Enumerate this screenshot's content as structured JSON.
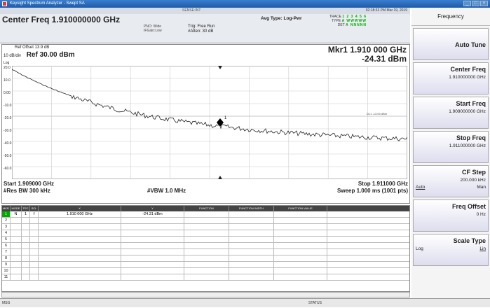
{
  "window": {
    "title": "Keysight Spectrum Analyzer - Swept SA",
    "buttons": [
      "_",
      "□",
      "×"
    ]
  },
  "menubar": {
    "text": "SENSE:INT",
    "status_right": "02:18:33 PM Mar 19, 2019"
  },
  "header": {
    "center_freq": "Center Freq 1.910000000 GHz",
    "pno": "PNO: Wide",
    "ifgain": "IFGain:Low",
    "trig": "Trig: Free Run",
    "atten": "#Atten: 30 dB",
    "avg_type": "Avg Type: Log-Pwr",
    "trace_lbl": "TRACE",
    "trace_vals": "1 2 3 4 5 6",
    "type_lbl": "TYPE",
    "type_vals": "A WWWWW",
    "det_lbl": "DET",
    "det_vals": "A NNNNN"
  },
  "plot": {
    "ref_offset": "Ref Offset 13.9 dB",
    "scale": "10 dB/div",
    "ref": "Ref 30.00 dBm",
    "log": "Log",
    "marker_freq": "Mkr1 1.910 000 GHz",
    "marker_amp": "-24.31 dBm",
    "marker_label": "1",
    "dl_label": "DL1 -13.00 dBm",
    "yticks": [
      "20.0",
      "10.0",
      "0.00",
      "-10.0",
      "-20.0",
      "-30.0",
      "-40.0",
      "-50.0",
      "-60.0"
    ],
    "start": "Start 1.909000 GHz",
    "res_bw": "#Res BW 300 kHz",
    "vbw": "#VBW 1.0 MHz",
    "stop": "Stop 1.911000 GHz",
    "sweep": "Sweep  1.000 ms (1001 pts)"
  },
  "table": {
    "headers": [
      "MKR",
      "MODE",
      "TRC",
      "SCL",
      "X",
      "Y",
      "FUNCTION",
      "FUNCTION WIDTH",
      "FUNCTION VALUE"
    ],
    "rows": [
      {
        "n": "1",
        "mode": "N",
        "trc": "1",
        "scl": "f",
        "x": "1.910 000 GHz",
        "y": "-24.31 dBm"
      },
      {
        "n": "2",
        "mode": "",
        "trc": "",
        "scl": "",
        "x": "",
        "y": ""
      },
      {
        "n": "3",
        "mode": "",
        "trc": "",
        "scl": "",
        "x": "",
        "y": ""
      },
      {
        "n": "4",
        "mode": "",
        "trc": "",
        "scl": "",
        "x": "",
        "y": ""
      },
      {
        "n": "5",
        "mode": "",
        "trc": "",
        "scl": "",
        "x": "",
        "y": ""
      },
      {
        "n": "6",
        "mode": "",
        "trc": "",
        "scl": "",
        "x": "",
        "y": ""
      },
      {
        "n": "7",
        "mode": "",
        "trc": "",
        "scl": "",
        "x": "",
        "y": ""
      },
      {
        "n": "8",
        "mode": "",
        "trc": "",
        "scl": "",
        "x": "",
        "y": ""
      },
      {
        "n": "9",
        "mode": "",
        "trc": "",
        "scl": "",
        "x": "",
        "y": ""
      },
      {
        "n": "10",
        "mode": "",
        "trc": "",
        "scl": "",
        "x": "",
        "y": ""
      },
      {
        "n": "11",
        "mode": "",
        "trc": "",
        "scl": "",
        "x": "",
        "y": ""
      }
    ]
  },
  "footer": {
    "msg": "MSG",
    "status": "STATUS"
  },
  "panel": {
    "title": "Frequency",
    "auto_tune": "Auto Tune",
    "center_freq_label": "Center Freq",
    "center_freq_value": "1.910000000 GHz",
    "start_freq_label": "Start Freq",
    "start_freq_value": "1.909000000 GHz",
    "stop_freq_label": "Stop Freq",
    "stop_freq_value": "1.911000000 GHz",
    "cf_step_label": "CF Step",
    "cf_step_value": "200.000 kHz",
    "cf_auto": "Auto",
    "cf_man": "Man",
    "freq_offset_label": "Freq Offset",
    "freq_offset_value": "0 Hz",
    "scale_type_label": "Scale Type",
    "scale_log": "Log",
    "scale_lin": "Lin"
  },
  "colors": {
    "trace": "#222222",
    "marker": "#000000",
    "active": "#00aa00"
  }
}
